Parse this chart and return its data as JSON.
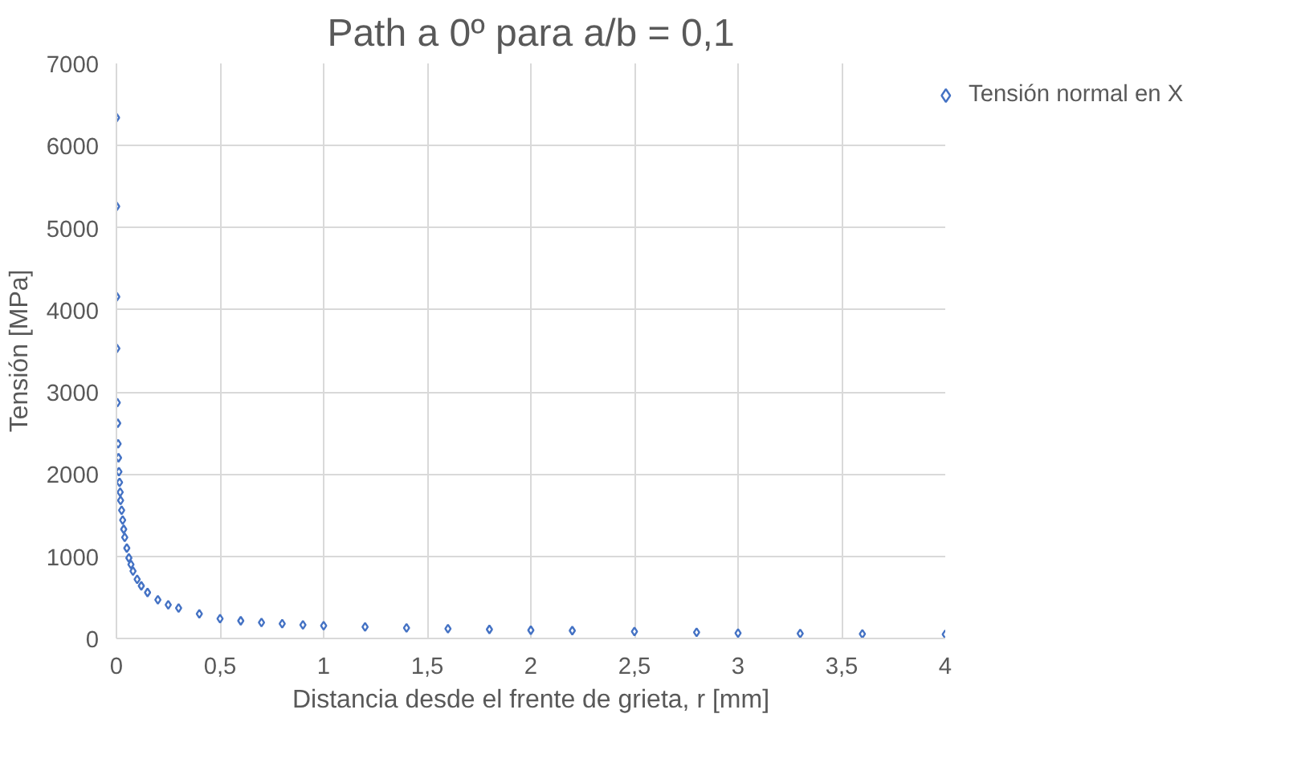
{
  "chart_data": {
    "type": "scatter",
    "title": "Path a 0º para a/b = 0,1",
    "xlabel": "Distancia desde el frente de grieta, r [mm]",
    "ylabel": "Tensión [MPa]",
    "x": [
      0.0005,
      0.001,
      0.0015,
      0.002,
      0.004,
      0.006,
      0.008,
      0.01,
      0.012,
      0.015,
      0.018,
      0.02,
      0.025,
      0.03,
      0.035,
      0.04,
      0.05,
      0.06,
      0.07,
      0.08,
      0.1,
      0.12,
      0.15,
      0.2,
      0.25,
      0.3,
      0.4,
      0.5,
      0.6,
      0.7,
      0.8,
      0.9,
      1.0,
      1.2,
      1.4,
      1.6,
      1.8,
      2.0,
      2.2,
      2.5,
      2.8,
      3.0,
      3.3,
      3.6,
      4.0
    ],
    "series": [
      {
        "name": "Tensión normal en X",
        "color": "#4472c4",
        "values": [
          6340,
          5260,
          4160,
          3530,
          2870,
          2620,
          2370,
          2200,
          2030,
          1900,
          1780,
          1680,
          1560,
          1440,
          1330,
          1230,
          1100,
          980,
          900,
          820,
          720,
          640,
          560,
          470,
          410,
          370,
          300,
          240,
          215,
          195,
          180,
          165,
          155,
          140,
          128,
          118,
          110,
          100,
          95,
          85,
          75,
          65,
          60,
          55,
          50
        ]
      }
    ],
    "xlim": [
      0,
      4
    ],
    "xticks": [
      0,
      {
        "value": 0.5,
        "label": "0,5"
      },
      1,
      {
        "value": 1.5,
        "label": "1,5"
      },
      2,
      {
        "value": 2.5,
        "label": "2,5"
      },
      3,
      {
        "value": 3.5,
        "label": "3,5"
      },
      4
    ],
    "ylim": [
      0,
      7000
    ],
    "yticks": [
      0,
      1000,
      2000,
      3000,
      4000,
      5000,
      6000,
      7000
    ],
    "grid": true,
    "legend": "right",
    "marker": "diamond"
  }
}
